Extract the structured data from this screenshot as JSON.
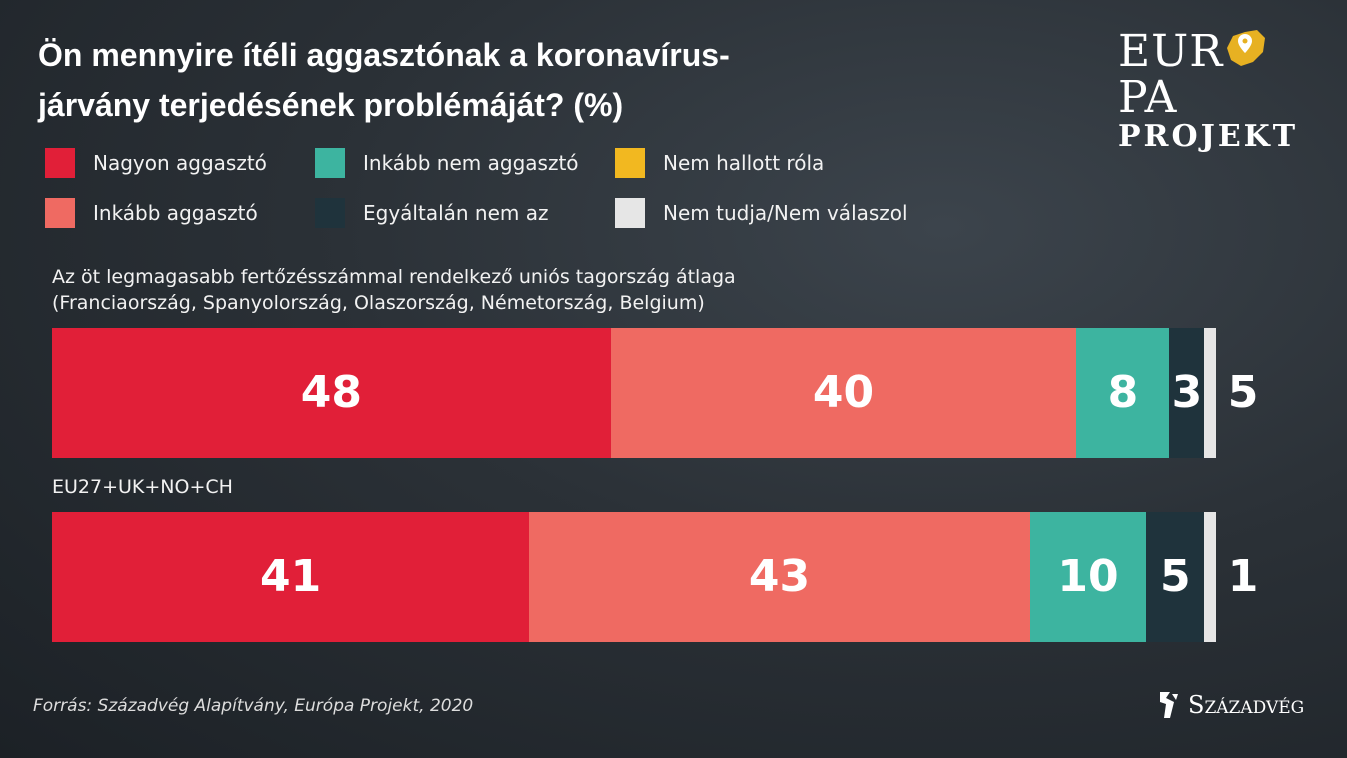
{
  "title": "Ön mennyire ítéli aggasztónak a koronavírus-járvány terjedésének problémáját? (%)",
  "legend": [
    {
      "label": "Nagyon aggasztó",
      "color": "#e11f38"
    },
    {
      "label": "Inkább aggasztó",
      "color": "#ef6a62"
    },
    {
      "label": "Inkább nem aggasztó",
      "color": "#3db4a0"
    },
    {
      "label": "Egyáltalán nem az",
      "color": "#1f333c"
    },
    {
      "label": "Nem hallott róla",
      "color": "#f2b820"
    },
    {
      "label": "Nem tudja/Nem válaszol",
      "color": "#e6e6e6"
    }
  ],
  "chart_data": {
    "type": "bar",
    "orientation": "horizontal-stacked",
    "title": "Ön mennyire ítéli aggasztónak a koronavírus-járvány terjedésének problémáját? (%)",
    "series_names": [
      "Nagyon aggasztó",
      "Inkább aggasztó",
      "Inkább nem aggasztó",
      "Egyáltalán nem az",
      "Nem tudja/Nem válaszol"
    ],
    "categories": [
      "Az öt legmagasabb fertőzésszámmal rendelkező uniós tagország átlaga (Franciaország, Spanyolország, Olaszország, Németország, Belgium)",
      "EU27+UK+NO+CH"
    ],
    "category_lines": [
      [
        "Az öt legmagasabb fertőzésszámmal rendelkező uniós tagország átlaga",
        "(Franciaország, Spanyolország, Olaszország, Németország, Belgium)"
      ],
      [
        "EU27+UK+NO+CH"
      ]
    ],
    "values": [
      [
        48,
        40,
        8,
        3,
        5
      ],
      [
        41,
        43,
        10,
        5,
        1
      ]
    ],
    "xlim": [
      0,
      100
    ]
  },
  "source": "Forrás: Századvég Alapítvány, Európa Projekt, 2020",
  "logos": {
    "europa_projekt": [
      "EUR",
      "PA",
      "PROJEKT"
    ],
    "szazadveg": "Századvég"
  }
}
